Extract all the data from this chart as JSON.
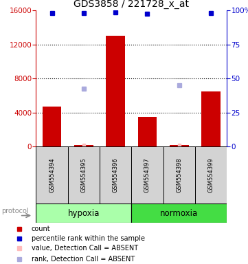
{
  "title": "GDS3858 / 221728_x_at",
  "samples": [
    "GSM554394",
    "GSM554395",
    "GSM554396",
    "GSM554397",
    "GSM554398",
    "GSM554399"
  ],
  "bar_values": [
    4700,
    200,
    13000,
    3500,
    150,
    6500
  ],
  "bar_color": "#CC0000",
  "percentile_ranks_pct": [
    98.0,
    98.0,
    98.5,
    97.5,
    null,
    98.0
  ],
  "percentile_color": "#0000CC",
  "rank_absent": [
    null,
    6800,
    null,
    null,
    7200,
    null
  ],
  "rank_absent_color": "#AAAADD",
  "value_absent": [
    null,
    200,
    null,
    null,
    150,
    null
  ],
  "value_absent_color": "#FFBBBB",
  "left_ylim": [
    0,
    16000
  ],
  "right_ylim": [
    0,
    100
  ],
  "left_yticks": [
    0,
    4000,
    8000,
    12000,
    16000
  ],
  "right_yticks": [
    0,
    25,
    50,
    75,
    100
  ],
  "right_yticklabels": [
    "0",
    "25",
    "50",
    "75",
    "100%"
  ],
  "left_color": "#CC0000",
  "right_color": "#0000CC",
  "background_color": "#FFFFFF",
  "grid_color": "#000000",
  "label_area_color": "#D3D3D3",
  "hypoxia_color": "#AAFFAA",
  "normoxia_color": "#44DD44",
  "legend_items": [
    {
      "label": "count",
      "color": "#CC0000"
    },
    {
      "label": "percentile rank within the sample",
      "color": "#0000CC"
    },
    {
      "label": "value, Detection Call = ABSENT",
      "color": "#FFBBBB"
    },
    {
      "label": "rank, Detection Call = ABSENT",
      "color": "#AAAADD"
    }
  ]
}
